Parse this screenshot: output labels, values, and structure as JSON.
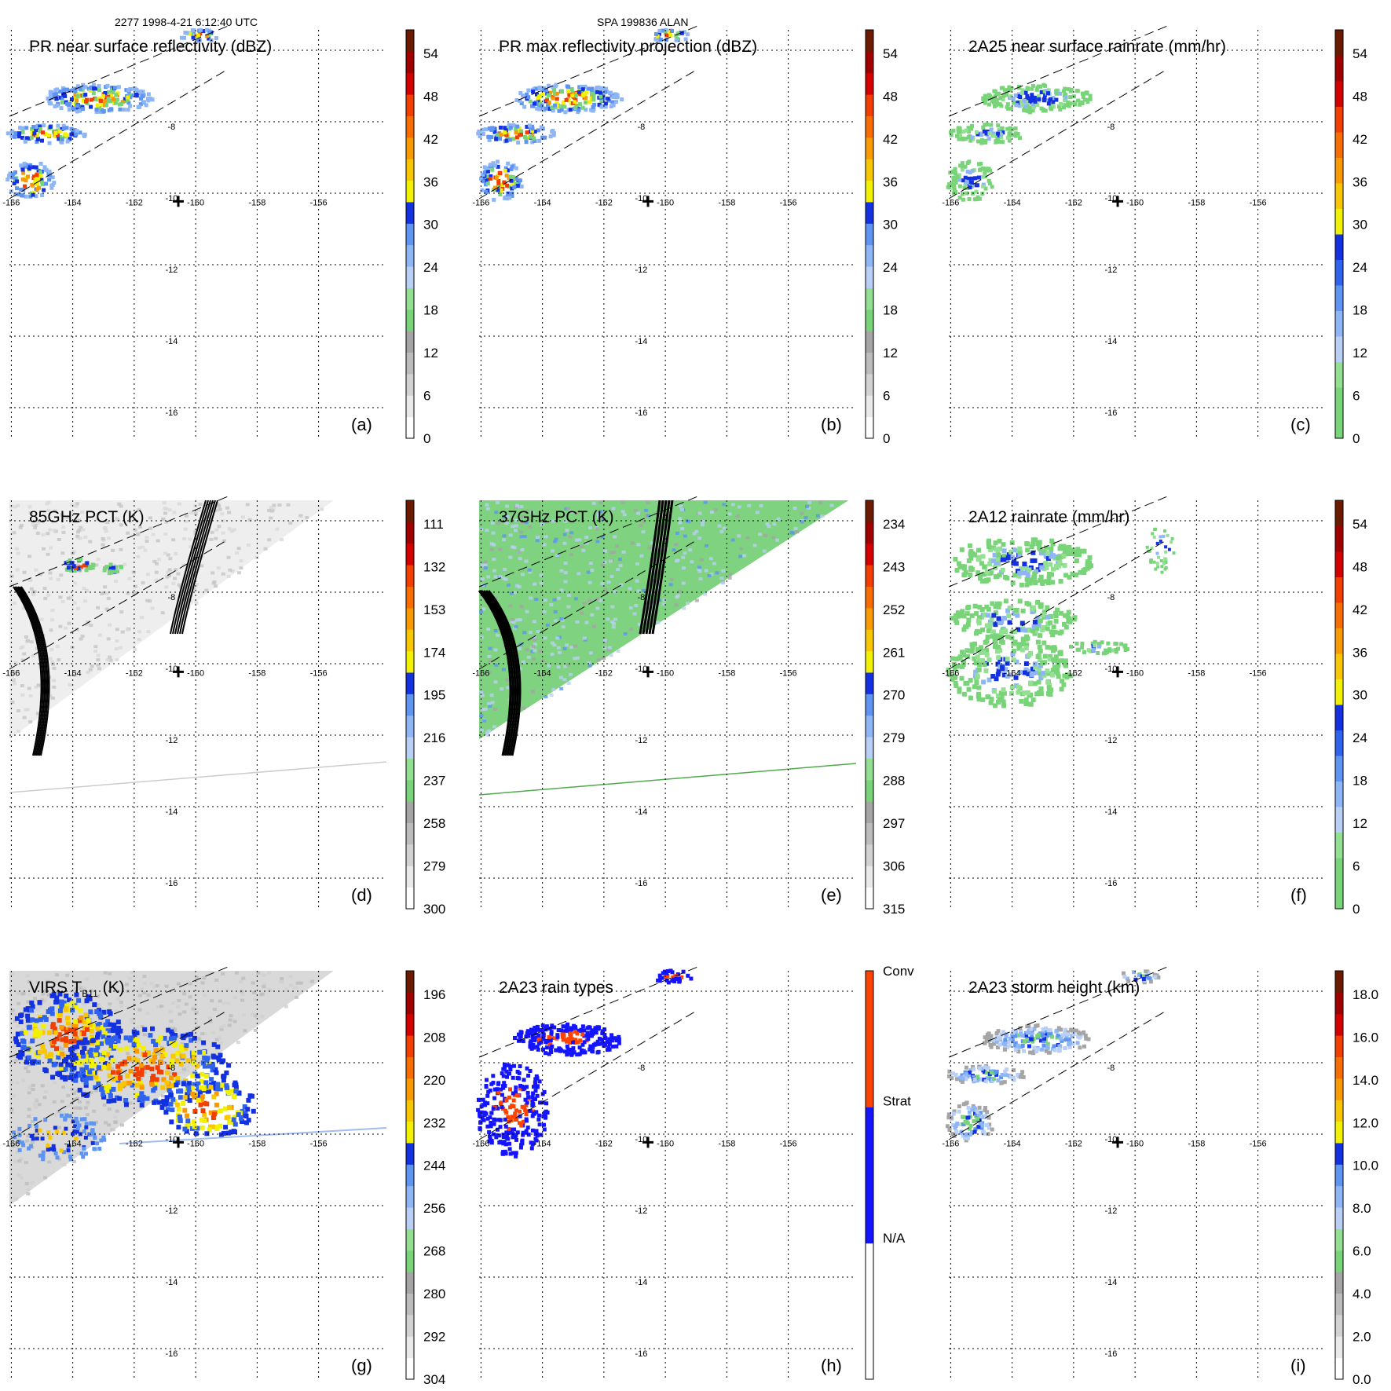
{
  "header": {
    "left": "2277 1998-4-21 6:12:40 UTC",
    "center": "SPA 199836 ALAN"
  },
  "lon_ticks": [
    "-166",
    "-164",
    "-162",
    "-160",
    "-158",
    "-156"
  ],
  "lat_ticks": [
    "-6",
    "-8",
    "-10",
    "-12",
    "-14",
    "-16"
  ],
  "palettes": {
    "rain": [
      "#79d479",
      "#79d479",
      "#93e093",
      "#b9cff5",
      "#8eb6f7",
      "#5e95f2",
      "#2f63ee",
      "#1331e0",
      "#f2f200",
      "#f9c700",
      "#f99a00",
      "#f76d00",
      "#f23e00",
      "#d40000",
      "#a00000",
      "#6b1a00"
    ],
    "dbz": [
      "#ffffff",
      "#e9e9e9",
      "#d2d2d2",
      "#bcbcbc",
      "#a5a5a5",
      "#79d479",
      "#93e093",
      "#b9cff5",
      "#8eb6f7",
      "#5e95f2",
      "#1331e0",
      "#f2f200",
      "#f9c700",
      "#f99a00",
      "#f76d00",
      "#f23e00",
      "#d40000",
      "#a00000",
      "#6b1a00"
    ],
    "bt": [
      "#ffffff",
      "#e9e9e9",
      "#d2d2d2",
      "#bcbcbc",
      "#a5a5a5",
      "#79d479",
      "#93e093",
      "#b9cff5",
      "#8eb6f7",
      "#5e95f2",
      "#1331e0",
      "#f2f200",
      "#f9c700",
      "#f99a00",
      "#f76d00",
      "#f23e00",
      "#d40000",
      "#a00000",
      "#6b1a00"
    ],
    "types": [
      "#ffffff",
      "#ffffff",
      "#1414ff",
      "#1414ff",
      "#ff4400",
      "#ff4400"
    ],
    "hgt": [
      "#ffffff",
      "#e9e9e9",
      "#d2d2d2",
      "#bcbcbc",
      "#a5a5a5",
      "#79d479",
      "#93e093",
      "#b9cff5",
      "#8eb6f7",
      "#5e95f2",
      "#1331e0",
      "#f2f200",
      "#f9c700",
      "#f99a00",
      "#f76d00",
      "#f23e00",
      "#d40000",
      "#a00000",
      "#6b1a00"
    ]
  },
  "chart_data": [
    {
      "type": "heatmap",
      "title": "PR near surface reflectivity (dBZ)",
      "label": "(a)",
      "colorbar": {
        "ticks": [
          "0",
          "6",
          "12",
          "18",
          "24",
          "30",
          "36",
          "42",
          "48",
          "54"
        ],
        "palette": "dbz"
      },
      "swath": true,
      "field": "pr_sfc"
    },
    {
      "type": "heatmap",
      "title": "PR max reflectivity projection (dBZ)",
      "label": "(b)",
      "colorbar": {
        "ticks": [
          "0",
          "6",
          "12",
          "18",
          "24",
          "30",
          "36",
          "42",
          "48",
          "54"
        ],
        "palette": "dbz"
      },
      "swath": true,
      "field": "pr_max"
    },
    {
      "type": "heatmap",
      "title": "2A25 near surface rainrate (mm/hr)",
      "label": "(c)",
      "colorbar": {
        "ticks": [
          "0",
          "6",
          "12",
          "18",
          "24",
          "30",
          "36",
          "42",
          "48",
          "54"
        ],
        "palette": "rain"
      },
      "swath": true,
      "field": "rain25"
    },
    {
      "type": "heatmap",
      "title": "85GHz PCT (K)",
      "label": "(d)",
      "colorbar": {
        "ticks": [
          "300",
          "279",
          "258",
          "237",
          "216",
          "195",
          "174",
          "153",
          "132",
          "111"
        ],
        "palette": "bt"
      },
      "swath": true,
      "field": "pct85",
      "contours": [
        "250",
        "250",
        "250",
        "250",
        "280"
      ]
    },
    {
      "type": "heatmap",
      "title": "37GHz PCT (K)",
      "label": "(e)",
      "colorbar": {
        "ticks": [
          "315",
          "306",
          "297",
          "288",
          "279",
          "270",
          "261",
          "252",
          "243",
          "234"
        ],
        "palette": "bt"
      },
      "swath": true,
      "field": "pct37"
    },
    {
      "type": "heatmap",
      "title": "2A12 rainrate (mm/hr)",
      "label": "(f)",
      "colorbar": {
        "ticks": [
          "0",
          "6",
          "12",
          "18",
          "24",
          "30",
          "36",
          "42",
          "48",
          "54"
        ],
        "palette": "rain"
      },
      "swath": false,
      "field": "rain12"
    },
    {
      "type": "heatmap",
      "title": "VIRS T",
      "title_sub": "B11",
      "title_tail": " (K)",
      "label": "(g)",
      "colorbar": {
        "ticks": [
          "304",
          "292",
          "280",
          "268",
          "256",
          "244",
          "232",
          "220",
          "208",
          "196"
        ],
        "palette": "bt"
      },
      "swath": true,
      "field": "virs"
    },
    {
      "type": "heatmap",
      "title": "2A23 rain types",
      "label": "(h)",
      "colorbar": {
        "ticks": [
          "N/A",
          "Strat",
          "Conv"
        ],
        "palette": "types",
        "categorical": true
      },
      "swath": true,
      "field": "types"
    },
    {
      "type": "heatmap",
      "title": "2A23 storm height (km)",
      "label": "(i)",
      "colorbar": {
        "ticks": [
          "0.0",
          "2.0",
          "4.0",
          "6.0",
          "8.0",
          "10.0",
          "12.0",
          "14.0",
          "16.0",
          "18.0"
        ],
        "palette": "hgt"
      },
      "swath": true,
      "field": "height"
    }
  ]
}
